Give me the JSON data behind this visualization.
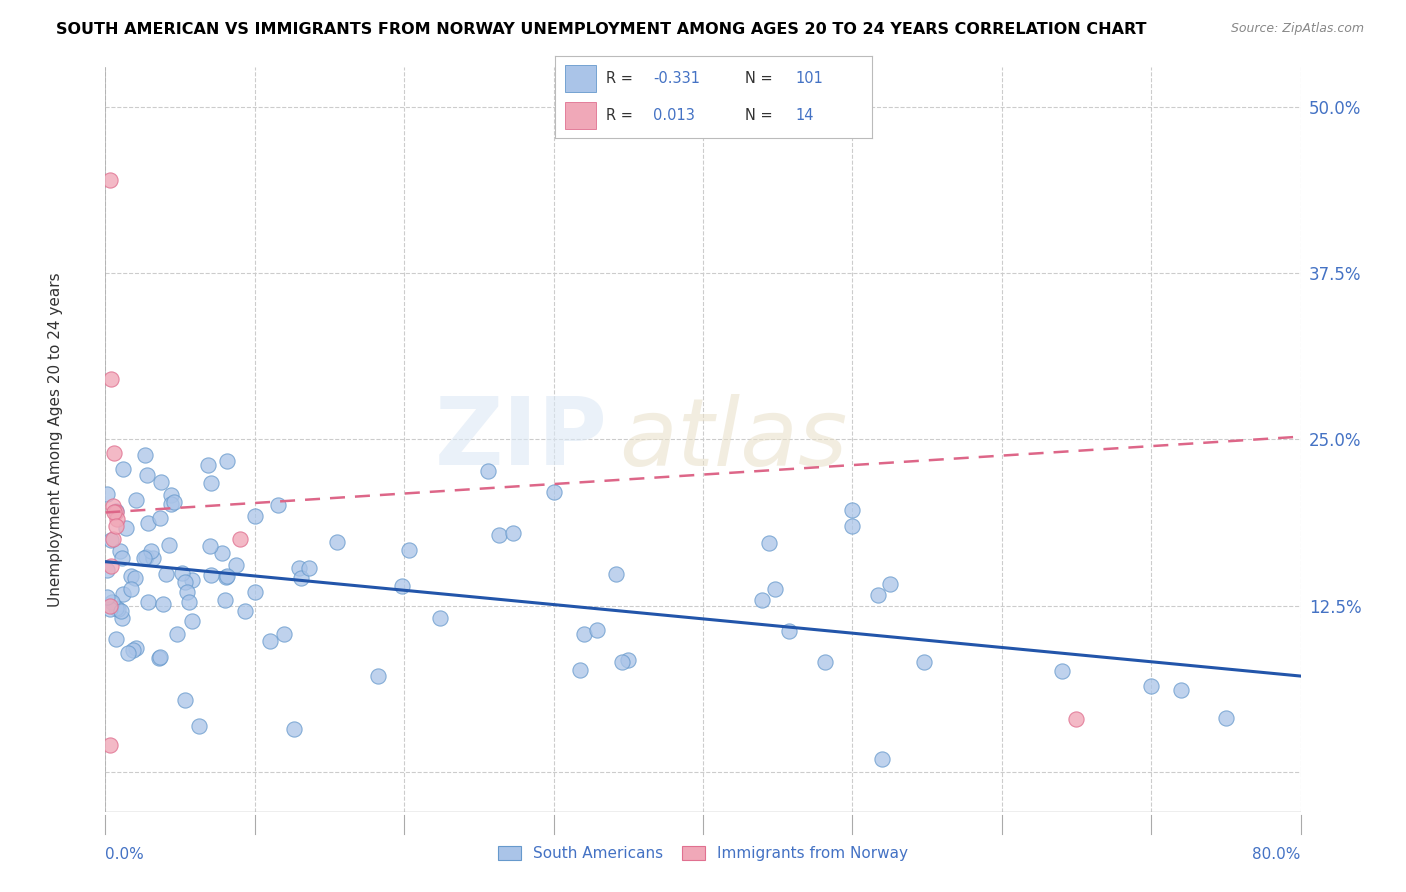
{
  "title": "SOUTH AMERICAN VS IMMIGRANTS FROM NORWAY UNEMPLOYMENT AMONG AGES 20 TO 24 YEARS CORRELATION CHART",
  "source": "Source: ZipAtlas.com",
  "ylabel": "Unemployment Among Ages 20 to 24 years",
  "right_yticklabels": [
    "",
    "12.5%",
    "25.0%",
    "37.5%",
    "50.0%"
  ],
  "right_ytick_vals": [
    0.0,
    0.125,
    0.25,
    0.375,
    0.5
  ],
  "xlim": [
    0.0,
    0.8
  ],
  "ylim": [
    -0.03,
    0.53
  ],
  "sa_color": "#aac4e8",
  "sa_edge_color": "#6699cc",
  "norway_color": "#f0a8b8",
  "norway_edge_color": "#e07090",
  "sa_trend_color": "#2255aa",
  "norway_trend_color": "#dd6688",
  "sa_trend_start": 0.158,
  "sa_trend_end": 0.072,
  "norway_trend_start": 0.195,
  "norway_trend_end": 0.252,
  "legend_R_sa": "-0.331",
  "legend_N_sa": "101",
  "legend_R_no": "0.013",
  "legend_N_no": "14",
  "legend_sa_color": "#aac4e8",
  "legend_no_color": "#f0a8b8",
  "bottom_legend": [
    "South Americans",
    "Immigrants from Norway"
  ]
}
